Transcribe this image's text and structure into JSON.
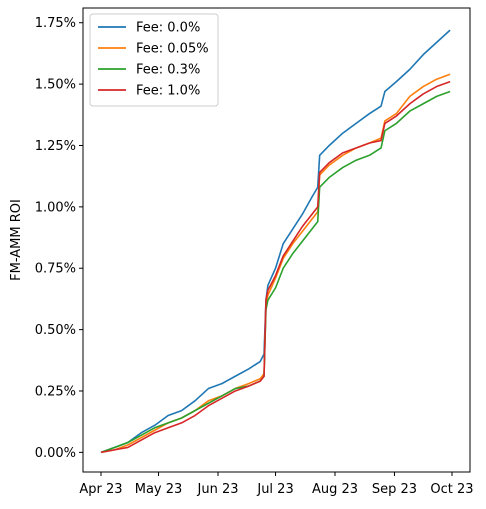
{
  "chart_data": {
    "type": "line",
    "title": "",
    "xlabel": "",
    "ylabel": "FM-AMM ROI",
    "x_range": [
      "2023-04-01",
      "2023-10-01"
    ],
    "x_ticks": [
      {
        "date": "2023-04-01",
        "label": "Apr 23"
      },
      {
        "date": "2023-05-01",
        "label": "May 23"
      },
      {
        "date": "2023-06-01",
        "label": "Jun 23"
      },
      {
        "date": "2023-07-01",
        "label": "Jul 23"
      },
      {
        "date": "2023-08-01",
        "label": "Aug 23"
      },
      {
        "date": "2023-09-01",
        "label": "Sep 23"
      },
      {
        "date": "2023-10-01",
        "label": "Oct 23"
      }
    ],
    "ylim": [
      -0.0008,
      0.0181
    ],
    "y_ticks": [
      {
        "value": 0.0,
        "label": "0.00%"
      },
      {
        "value": 0.0025,
        "label": "0.25%"
      },
      {
        "value": 0.005,
        "label": "0.50%"
      },
      {
        "value": 0.0075,
        "label": "0.75%"
      },
      {
        "value": 0.01,
        "label": "1.00%"
      },
      {
        "value": 0.0125,
        "label": "1.25%"
      },
      {
        "value": 0.015,
        "label": "1.50%"
      },
      {
        "value": 0.0175,
        "label": "1.75%"
      }
    ],
    "grid": false,
    "legend_position": "top-left",
    "series": [
      {
        "name": "Fee: 0.0%",
        "color": "#1f77b4",
        "points": [
          [
            "2023-04-01",
            0.0
          ],
          [
            "2023-04-08",
            0.0002
          ],
          [
            "2023-04-15",
            0.0004
          ],
          [
            "2023-04-22",
            0.0008
          ],
          [
            "2023-04-29",
            0.0011
          ],
          [
            "2023-05-06",
            0.0015
          ],
          [
            "2023-05-13",
            0.0017
          ],
          [
            "2023-05-20",
            0.0021
          ],
          [
            "2023-05-27",
            0.0026
          ],
          [
            "2023-06-03",
            0.0028
          ],
          [
            "2023-06-10",
            0.0031
          ],
          [
            "2023-06-17",
            0.0034
          ],
          [
            "2023-06-23",
            0.0037
          ],
          [
            "2023-06-25",
            0.004
          ],
          [
            "2023-06-26",
            0.0062
          ],
          [
            "2023-06-27",
            0.0068
          ],
          [
            "2023-07-01",
            0.0075
          ],
          [
            "2023-07-05",
            0.0085
          ],
          [
            "2023-07-10",
            0.0091
          ],
          [
            "2023-07-15",
            0.0097
          ],
          [
            "2023-07-20",
            0.0104
          ],
          [
            "2023-07-23",
            0.0108
          ],
          [
            "2023-07-24",
            0.0121
          ],
          [
            "2023-07-29",
            0.0125
          ],
          [
            "2023-08-05",
            0.013
          ],
          [
            "2023-08-12",
            0.0134
          ],
          [
            "2023-08-19",
            0.0138
          ],
          [
            "2023-08-25",
            0.0141
          ],
          [
            "2023-08-27",
            0.0147
          ],
          [
            "2023-09-02",
            0.0151
          ],
          [
            "2023-09-09",
            0.0156
          ],
          [
            "2023-09-16",
            0.0162
          ],
          [
            "2023-09-23",
            0.0167
          ],
          [
            "2023-09-30",
            0.0172
          ]
        ]
      },
      {
        "name": "Fee: 0.05%",
        "color": "#ff7f0e",
        "points": [
          [
            "2023-04-01",
            0.0
          ],
          [
            "2023-04-08",
            0.0001
          ],
          [
            "2023-04-15",
            0.0003
          ],
          [
            "2023-04-22",
            0.0006
          ],
          [
            "2023-04-29",
            0.0009
          ],
          [
            "2023-05-06",
            0.0012
          ],
          [
            "2023-05-13",
            0.0014
          ],
          [
            "2023-05-20",
            0.0017
          ],
          [
            "2023-05-27",
            0.0021
          ],
          [
            "2023-06-03",
            0.0023
          ],
          [
            "2023-06-10",
            0.0026
          ],
          [
            "2023-06-17",
            0.0028
          ],
          [
            "2023-06-23",
            0.003
          ],
          [
            "2023-06-25",
            0.0032
          ],
          [
            "2023-06-26",
            0.006
          ],
          [
            "2023-06-27",
            0.0064
          ],
          [
            "2023-07-01",
            0.0071
          ],
          [
            "2023-07-05",
            0.0079
          ],
          [
            "2023-07-10",
            0.0085
          ],
          [
            "2023-07-15",
            0.009
          ],
          [
            "2023-07-20",
            0.0095
          ],
          [
            "2023-07-23",
            0.0098
          ],
          [
            "2023-07-24",
            0.0113
          ],
          [
            "2023-07-29",
            0.0117
          ],
          [
            "2023-08-05",
            0.0121
          ],
          [
            "2023-08-12",
            0.0124
          ],
          [
            "2023-08-19",
            0.0126
          ],
          [
            "2023-08-25",
            0.0128
          ],
          [
            "2023-08-27",
            0.0135
          ],
          [
            "2023-09-02",
            0.0138
          ],
          [
            "2023-09-09",
            0.0145
          ],
          [
            "2023-09-16",
            0.0149
          ],
          [
            "2023-09-23",
            0.0152
          ],
          [
            "2023-09-30",
            0.0154
          ]
        ]
      },
      {
        "name": "Fee: 0.3%",
        "color": "#2ca02c",
        "points": [
          [
            "2023-04-01",
            0.0
          ],
          [
            "2023-04-08",
            0.0002
          ],
          [
            "2023-04-15",
            0.0004
          ],
          [
            "2023-04-22",
            0.0007
          ],
          [
            "2023-04-29",
            0.001
          ],
          [
            "2023-05-06",
            0.0012
          ],
          [
            "2023-05-13",
            0.0014
          ],
          [
            "2023-05-20",
            0.0017
          ],
          [
            "2023-05-27",
            0.002
          ],
          [
            "2023-06-03",
            0.0023
          ],
          [
            "2023-06-10",
            0.0026
          ],
          [
            "2023-06-17",
            0.0027
          ],
          [
            "2023-06-23",
            0.0029
          ],
          [
            "2023-06-25",
            0.0031
          ],
          [
            "2023-06-26",
            0.0058
          ],
          [
            "2023-06-27",
            0.0062
          ],
          [
            "2023-07-01",
            0.0067
          ],
          [
            "2023-07-05",
            0.0075
          ],
          [
            "2023-07-10",
            0.0081
          ],
          [
            "2023-07-15",
            0.0086
          ],
          [
            "2023-07-20",
            0.0091
          ],
          [
            "2023-07-23",
            0.0094
          ],
          [
            "2023-07-24",
            0.0108
          ],
          [
            "2023-07-29",
            0.0112
          ],
          [
            "2023-08-05",
            0.0116
          ],
          [
            "2023-08-12",
            0.0119
          ],
          [
            "2023-08-19",
            0.0121
          ],
          [
            "2023-08-25",
            0.0124
          ],
          [
            "2023-08-27",
            0.0131
          ],
          [
            "2023-09-02",
            0.0134
          ],
          [
            "2023-09-09",
            0.0139
          ],
          [
            "2023-09-16",
            0.0142
          ],
          [
            "2023-09-23",
            0.0145
          ],
          [
            "2023-09-30",
            0.0147
          ]
        ]
      },
      {
        "name": "Fee: 1.0%",
        "color": "#d62728",
        "points": [
          [
            "2023-04-01",
            0.0
          ],
          [
            "2023-04-08",
            0.0001
          ],
          [
            "2023-04-15",
            0.0002
          ],
          [
            "2023-04-22",
            0.0005
          ],
          [
            "2023-04-29",
            0.0008
          ],
          [
            "2023-05-06",
            0.001
          ],
          [
            "2023-05-13",
            0.0012
          ],
          [
            "2023-05-20",
            0.0015
          ],
          [
            "2023-05-27",
            0.0019
          ],
          [
            "2023-06-03",
            0.0022
          ],
          [
            "2023-06-10",
            0.0025
          ],
          [
            "2023-06-17",
            0.0027
          ],
          [
            "2023-06-23",
            0.0029
          ],
          [
            "2023-06-25",
            0.0031
          ],
          [
            "2023-06-26",
            0.0062
          ],
          [
            "2023-06-27",
            0.0066
          ],
          [
            "2023-07-01",
            0.0072
          ],
          [
            "2023-07-05",
            0.008
          ],
          [
            "2023-07-10",
            0.0086
          ],
          [
            "2023-07-15",
            0.0092
          ],
          [
            "2023-07-20",
            0.0097
          ],
          [
            "2023-07-23",
            0.01
          ],
          [
            "2023-07-24",
            0.0114
          ],
          [
            "2023-07-29",
            0.0118
          ],
          [
            "2023-08-05",
            0.0122
          ],
          [
            "2023-08-12",
            0.0124
          ],
          [
            "2023-08-19",
            0.0126
          ],
          [
            "2023-08-25",
            0.0127
          ],
          [
            "2023-08-27",
            0.0134
          ],
          [
            "2023-09-02",
            0.0137
          ],
          [
            "2023-09-09",
            0.0142
          ],
          [
            "2023-09-16",
            0.0146
          ],
          [
            "2023-09-23",
            0.0149
          ],
          [
            "2023-09-30",
            0.0151
          ]
        ]
      }
    ]
  }
}
